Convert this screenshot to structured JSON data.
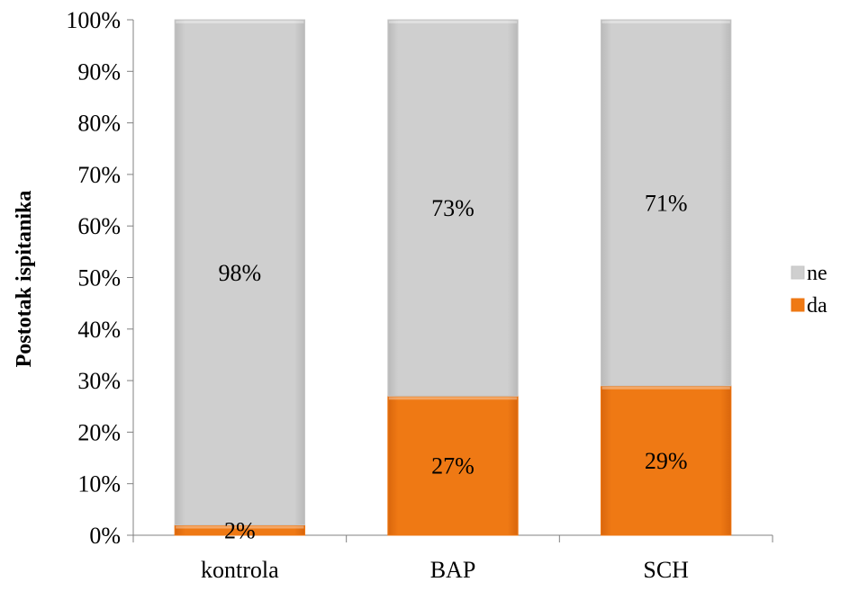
{
  "chart_data": {
    "type": "bar",
    "stacked": true,
    "percent_stacked": true,
    "categories": [
      "kontrola",
      "BAP",
      "SCH"
    ],
    "series": [
      {
        "name": "da",
        "values": [
          2,
          27,
          29
        ],
        "labels": [
          "2%",
          "27%",
          "29%"
        ],
        "color": "#EE7612"
      },
      {
        "name": "ne",
        "values": [
          98,
          73,
          71
        ],
        "labels": [
          "98%",
          "73%",
          "71%"
        ],
        "color": "#C7C7C7"
      }
    ],
    "ylabel": "Postotak ispitanika",
    "xlabel": "",
    "ylim": [
      0,
      100
    ],
    "y_ticks": [
      "0%",
      "10%",
      "20%",
      "30%",
      "40%",
      "50%",
      "60%",
      "70%",
      "80%",
      "90%",
      "100%"
    ],
    "grid": false,
    "legend_position": "right"
  }
}
